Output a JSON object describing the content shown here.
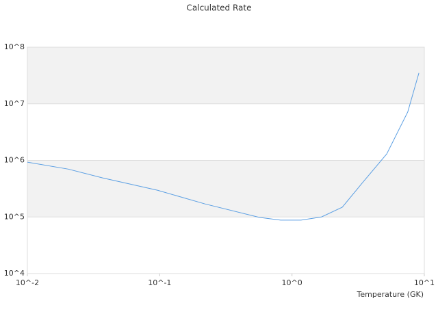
{
  "chart_data": {
    "type": "line",
    "title": "Calculated Rate",
    "x_label": "Temperature (GK)",
    "xscale": "log",
    "yscale": "log",
    "grid": true,
    "alternating_bands": true,
    "xlim": [
      0.01,
      10
    ],
    "ylim": [
      10000,
      100000000
    ],
    "xticks": [
      {
        "value": 0.01,
        "label": "10^-2"
      },
      {
        "value": 0.1,
        "label": "10^-1"
      },
      {
        "value": 1,
        "label": "10^0"
      },
      {
        "value": 10,
        "label": "10^1"
      }
    ],
    "yticks": [
      {
        "value": 10000,
        "label": "10^4"
      },
      {
        "value": 100000,
        "label": "10^5"
      },
      {
        "value": 1000000,
        "label": "10^6"
      },
      {
        "value": 10000000,
        "label": "10^7"
      },
      {
        "value": 100000000,
        "label": "10^8"
      }
    ],
    "series": [
      {
        "color": "#5b9fe3",
        "x": [
          0.01,
          0.0204,
          0.037,
          0.096,
          0.22,
          0.57,
          0.82,
          1.17,
          1.67,
          2.4,
          3.4,
          5.2,
          7.5,
          9.1
        ],
        "values": [
          930000,
          700000,
          490000,
          297000,
          170000,
          98000,
          88000,
          88000,
          100000,
          149000,
          400000,
          1300000,
          7200000,
          35000000
        ]
      }
    ]
  }
}
